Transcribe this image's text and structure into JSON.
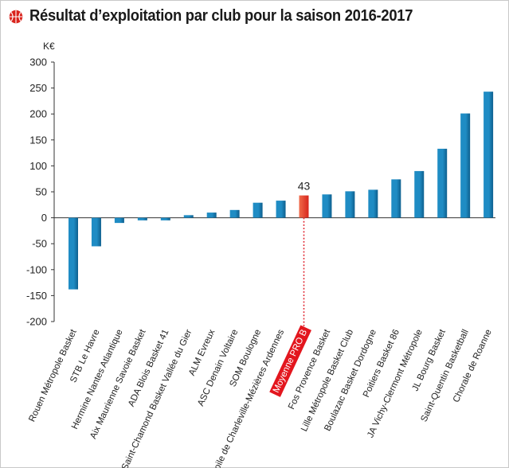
{
  "chart_data": {
    "type": "bar",
    "title": "Résultat d’exploitation par club pour la saison 2016-2017",
    "ylabel": "K€",
    "ylim": [
      -200,
      300
    ],
    "yticks": [
      300,
      250,
      200,
      150,
      100,
      50,
      0,
      -50,
      -100,
      -150,
      -200
    ],
    "categories": [
      "Rouen Métropole Basket",
      "STB Le Havre",
      "Hermine Nantes Atlantique",
      "Aix Maurienne Savoie Basket",
      "ADA Blois Basket 41",
      "Saint-Chamond Basket Vallée du Gier",
      "ALM Evreux",
      "ASC Denain Voltaire",
      "SOM Boulogne",
      "Etoile de Charleville-Mézières Ardennes",
      "Moyenne PRO B",
      "Fos Provence Basket",
      "Lille Métropole Basket Club",
      "Boulazac Basket Dordogne",
      "Poitiers Basket 86",
      "JA Vichy-Clermont Métropole",
      "JL Bourg Basket",
      "Saint-Quentin Basketball",
      "Chorale de Roanne"
    ],
    "values": [
      -138,
      -55,
      -10,
      -5,
      -5,
      5,
      10,
      15,
      29,
      33,
      43,
      45,
      51,
      54,
      74,
      90,
      133,
      201,
      243
    ],
    "highlight_category": "Moyenne PRO B",
    "highlight_value_label": "43",
    "colors": {
      "bar": "#1f8cc4",
      "bar_dark": "#0e5f8e",
      "highlight": "#f06a4a",
      "highlight_dark": "#d7261c",
      "highlight_label_bg": "#e3161e",
      "axis": "#333333",
      "dotted": "#e0202a"
    }
  }
}
